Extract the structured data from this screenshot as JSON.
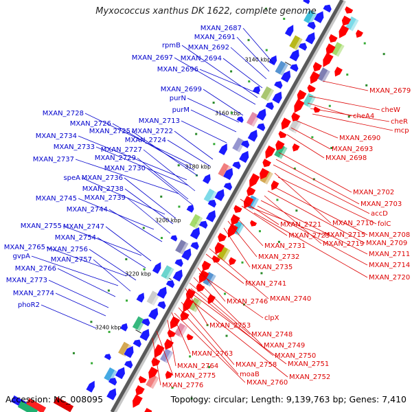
{
  "title": "Myxococcus xanthus DK 1622, complete genome",
  "accession_label": "Accession: NC_008095",
  "summary_label": "Topology: circular; Length: 9,139,763 bp; Genes: 7,410",
  "ticks": [
    "3140 kbp",
    "3160 kbp",
    "3180 kbp",
    "3200 kbp",
    "3220 kbp",
    "3240 kbp"
  ],
  "reverse_strand_color": "#1a1aff",
  "forward_strand_color": "#ff0000",
  "reverse_label_color": "#0000cc",
  "forward_label_color": "#dd0000",
  "blue_labels": [
    "MXAN_2687",
    "MXAN_2691",
    "MXAN_2692",
    "rpmB",
    "MXAN_2697",
    "MXAN_2694",
    "MXAN_2696",
    "MXAN_2699",
    "purN",
    "purM",
    "MXAN_2713",
    "MXAN_2728",
    "MXAN_2726",
    "MXAN_2725",
    "MXAN_2722",
    "MXAN_2724",
    "MXAN_2734",
    "MXAN_2733",
    "MXAN_2727",
    "MXAN_2737",
    "MXAN_2729",
    "MXAN_2730",
    "speA",
    "MXAN_2736",
    "MXAN_2738",
    "MXAN_2745",
    "MXAN_2739",
    "MXAN_2744",
    "MXAN_2755",
    "MXAN_2747",
    "MXAN_2754",
    "MXAN_2765",
    "MXAN_2756",
    "gvpA",
    "MXAN_2757",
    "MXAN_2766",
    "MXAN_2773",
    "MXAN_2774",
    "phoR2"
  ],
  "red_labels": [
    "MXAN_2679",
    "cheW",
    "cheA4",
    "cheR",
    "mcp",
    "MXAN_2690",
    "MXAN_2693",
    "MXAN_2698",
    "MXAN_2702",
    "MXAN_2703",
    "accD",
    "MXAN_2721",
    "MXAN_2710",
    "folC",
    "MXAN_2715",
    "MXAN_2708",
    "MXAN_2723",
    "MXAN_2719",
    "MXAN_2709",
    "MXAN_2731",
    "MXAN_2711",
    "MXAN_2732",
    "MXAN_2714",
    "MXAN_2735",
    "MXAN_2720",
    "MXAN_2741",
    "MXAN_2740",
    "MXAN_2746",
    "clpX",
    "MXAN_2753",
    "MXAN_2748",
    "MXAN_2749",
    "MXAN_2763",
    "MXAN_2750",
    "MXAN_2764",
    "MXAN_2758",
    "MXAN_2751",
    "MXAN_2775",
    "moaB",
    "MXAN_2752",
    "MXAN_2776",
    "MXAN_2760"
  ]
}
